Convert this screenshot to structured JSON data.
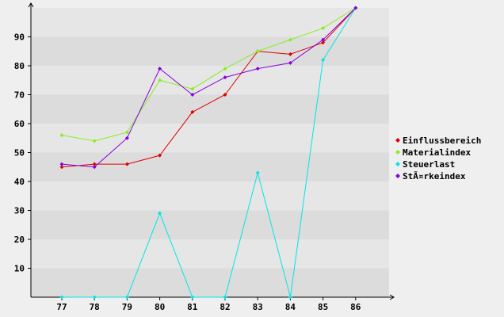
{
  "chart_data": {
    "type": "line",
    "title": "",
    "xlabel": "",
    "ylabel": "",
    "categories": [
      "77",
      "78",
      "79",
      "80",
      "81",
      "82",
      "83",
      "84",
      "85",
      "86"
    ],
    "ylim": [
      0,
      100
    ],
    "y_ticks": [
      10,
      20,
      30,
      40,
      50,
      60,
      70,
      80,
      90
    ],
    "grid": "horizontal alternating bands",
    "legend_position": "right",
    "series": [
      {
        "name": "Einflussbereich",
        "color": "#e00000",
        "values": [
          45,
          46,
          46,
          49,
          64,
          70,
          85,
          84,
          88,
          100
        ]
      },
      {
        "name": "Materialindex",
        "color": "#88ee22",
        "values": [
          56,
          54,
          57,
          75,
          72,
          79,
          85,
          89,
          93,
          100
        ]
      },
      {
        "name": "Steuerlast",
        "color": "#00e6e6",
        "values": [
          0,
          0,
          0,
          29,
          0,
          0,
          43,
          0,
          82,
          100
        ]
      },
      {
        "name": "StÃ¤rkeindex",
        "color": "#8800dd",
        "values": [
          46,
          45,
          55,
          79,
          70,
          76,
          79,
          81,
          89,
          100
        ]
      }
    ]
  }
}
